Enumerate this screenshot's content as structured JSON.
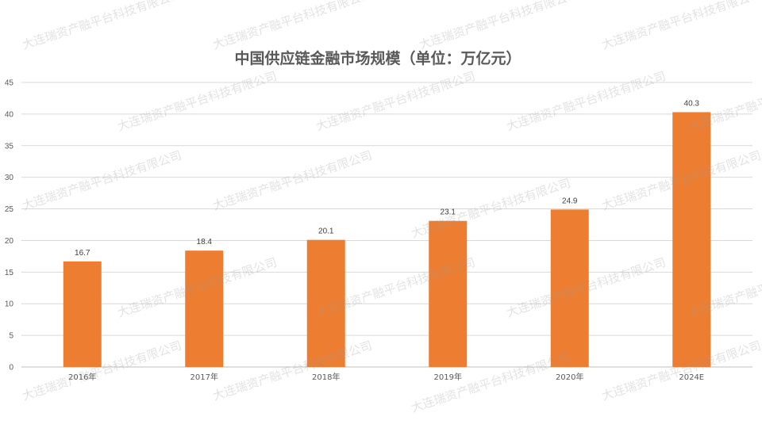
{
  "chart_data": {
    "type": "bar",
    "title": "中国供应链金融市场规模（单位：万亿元）",
    "xlabel": "",
    "ylabel": "",
    "categories": [
      "2016年",
      "2017年",
      "2018年",
      "2019年",
      "2020年",
      "2024E"
    ],
    "values": [
      16.7,
      18.4,
      20.1,
      23.1,
      24.9,
      40.3
    ],
    "value_labels": [
      "16.7",
      "18.4",
      "20.1",
      "23.1",
      "24.9",
      "40.3"
    ],
    "ylim": [
      0,
      45
    ],
    "y_ticks": [
      "0",
      "5",
      "10",
      "15",
      "20",
      "25",
      "30",
      "35",
      "40",
      "45"
    ],
    "grid": true,
    "legend": "none",
    "bar_color": "#ed7d31"
  },
  "watermark": {
    "text": "大连瑞资产融平台科技有限公司"
  }
}
